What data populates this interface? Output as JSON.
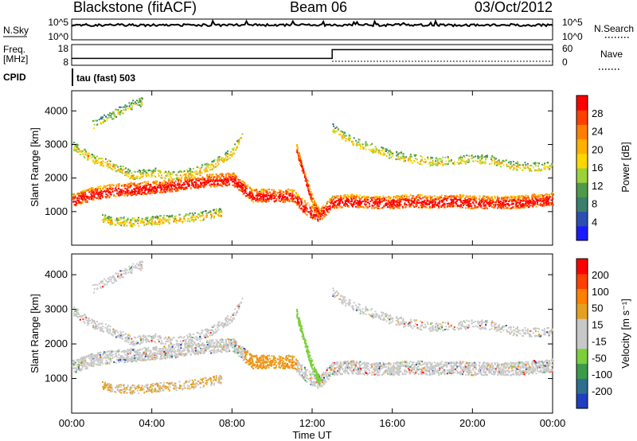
{
  "header": {
    "station": "Blackstone (fitACF)",
    "beam": "Beam 06",
    "date": "03/Oct/2012"
  },
  "aux": {
    "nsky_label": "N.Sky",
    "nsky_top": "10^5",
    "nsky_bottom": "10^0",
    "nsearch_label": "N.Search",
    "nsearch_top": "10^5",
    "nsearch_bottom": "10^0",
    "freq_label_1": "Freq.",
    "freq_label_2": "[MHz]",
    "freq_top": "18",
    "freq_bottom": "8",
    "nave_label": "Nave",
    "nave_top": "60",
    "nave_bottom": "0",
    "cpid_label": "CPID",
    "cpid_value": "tau (fast) 503",
    "freq_step_hour": 13,
    "freq_before": 11,
    "freq_after": 16
  },
  "colors": {
    "power": [
      "#1a1aff",
      "#2b4fb0",
      "#3a7f6e",
      "#4f9a4a",
      "#9bd23a",
      "#ffd700",
      "#ffb000",
      "#ff8000",
      "#ff4000",
      "#ff0000"
    ],
    "velocity": [
      "#1f3fbf",
      "#2e6f8f",
      "#3c9a4a",
      "#7ccf3a",
      "#c8c8c8",
      "#c8c8c8",
      "#e6a020",
      "#ff8000",
      "#ff4000",
      "#ff0000"
    ]
  },
  "chart_data": [
    {
      "type": "heatmap",
      "panel": "power",
      "ylabel": "Slant Range [km]",
      "y_ticks": [
        "1000",
        "2000",
        "3000",
        "4000"
      ],
      "ylim": [
        0,
        4600
      ],
      "xlim": [
        "00:00",
        "24:00"
      ],
      "colorbar_label": "Power [dB]",
      "colorbar_ticks": [
        "4",
        "8",
        "12",
        "16",
        "20",
        "24",
        "28"
      ],
      "colorbar_range": [
        0,
        30
      ],
      "features": [
        {
          "name": "main",
          "hours": [
            0,
            1,
            2,
            3,
            4,
            5,
            6,
            7,
            8,
            9,
            10,
            11,
            11.7,
            12.3,
            13,
            14,
            15,
            16,
            17,
            18,
            19,
            20,
            21,
            22,
            23,
            24
          ],
          "range_km": [
            1350,
            1550,
            1650,
            1700,
            1750,
            1800,
            1900,
            1950,
            2000,
            1500,
            1500,
            1500,
            1100,
            900,
            1300,
            1350,
            1300,
            1300,
            1350,
            1300,
            1350,
            1300,
            1300,
            1300,
            1350,
            1400
          ],
          "strength": 0.9
        },
        {
          "name": "upper",
          "hours": [
            0,
            1,
            2,
            3,
            4,
            5,
            6,
            7,
            8,
            8.5
          ],
          "range_km": [
            3000,
            2600,
            2400,
            2100,
            2200,
            2100,
            2200,
            2400,
            2800,
            3300
          ],
          "strength": 0.35
        },
        {
          "name": "far",
          "hours": [
            1,
            2,
            3,
            3.5
          ],
          "range_km": [
            3600,
            3900,
            4200,
            4300
          ],
          "strength": 0.15
        },
        {
          "name": "lower",
          "hours": [
            1.5,
            2,
            3,
            4,
            5,
            6,
            7,
            7.5
          ],
          "range_km": [
            800,
            750,
            700,
            750,
            800,
            850,
            950,
            1000
          ],
          "strength": 0.35
        },
        {
          "name": "arc",
          "hours": [
            11.2,
            11.5,
            11.8,
            12.1,
            12.4
          ],
          "range_km": [
            2900,
            2300,
            1700,
            1200,
            900
          ],
          "strength": 0.8
        },
        {
          "name": "late",
          "hours": [
            13,
            14,
            15,
            16,
            17,
            18,
            19,
            20,
            21,
            22,
            23,
            24
          ],
          "range_km": [
            3500,
            3100,
            2900,
            2700,
            2600,
            2500,
            2550,
            2600,
            2550,
            2400,
            2350,
            2400
          ],
          "strength": 0.3
        }
      ]
    },
    {
      "type": "heatmap",
      "panel": "velocity",
      "ylabel": "Slant Range [km]",
      "y_ticks": [
        "1000",
        "2000",
        "3000",
        "4000"
      ],
      "ylim": [
        0,
        4600
      ],
      "xlabel": "Time UT",
      "x_ticks": [
        "00:00",
        "04:00",
        "08:00",
        "12:00",
        "16:00",
        "20:00",
        "00:00"
      ],
      "xlim": [
        "00:00",
        "24:00"
      ],
      "colorbar_label": "Velocity [m s⁻¹]",
      "colorbar_ticks": [
        "200",
        "100",
        "50",
        "15",
        "-15",
        "-50",
        "-100",
        "-200"
      ],
      "colorbar_range": [
        -250,
        250
      ]
    }
  ]
}
